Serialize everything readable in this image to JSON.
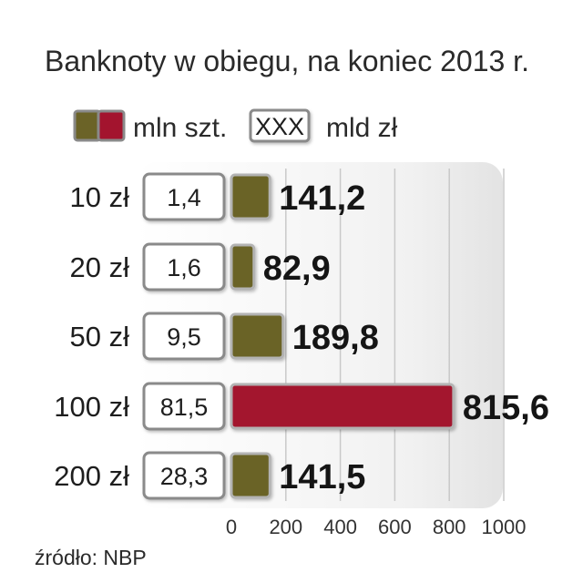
{
  "chart_data": {
    "type": "bar",
    "orientation": "horizontal",
    "title": "Banknoty w obiegu, na koniec 2013 r.",
    "categories": [
      "10 zł",
      "20 zł",
      "50 zł",
      "100 zł",
      "200 zł"
    ],
    "series": [
      {
        "name": "mln szt.",
        "values": [
          141.2,
          82.9,
          189.8,
          815.6,
          141.5
        ],
        "value_labels": [
          "141,2",
          "82,9",
          "189,8",
          "815,6",
          "141,5"
        ]
      },
      {
        "name": "mld zł",
        "values": [
          1.4,
          1.6,
          9.5,
          81.5,
          28.3
        ],
        "value_labels": [
          "1,4",
          "1,6",
          "9,5",
          "81,5",
          "28,3"
        ]
      }
    ],
    "highlight_index": 3,
    "xlim": [
      0,
      1000
    ],
    "xticks": [
      "0",
      "200",
      "400",
      "600",
      "800",
      "1000"
    ],
    "legend": {
      "bar_key": "mln szt.",
      "box_key": "mld zł",
      "box_sample": "XXX"
    },
    "source": "źródło: NBP"
  },
  "colors": {
    "bar_default": "#6b6327",
    "bar_highlight": "#a3142e",
    "panel_bg": "#ececec",
    "box_border": "#8a8a8a",
    "gridline": "#c9c9c9"
  }
}
